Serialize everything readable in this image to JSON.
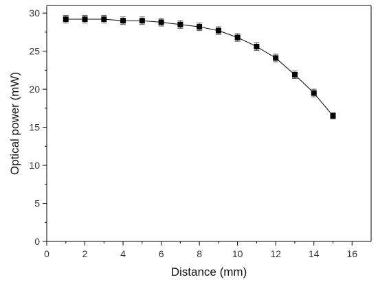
{
  "chart_data": {
    "type": "scatter",
    "title": "",
    "xlabel": "Distance (mm)",
    "ylabel": "Optical power (mW)",
    "xlim": [
      0,
      17
    ],
    "ylim": [
      0,
      31
    ],
    "x_ticks": [
      0,
      2,
      4,
      6,
      8,
      10,
      12,
      14,
      16
    ],
    "y_ticks": [
      0,
      5,
      10,
      15,
      20,
      25,
      30
    ],
    "grid": false,
    "legend": "none",
    "marker": "square",
    "line": "connected",
    "color": "#000000",
    "series": [
      {
        "x": [
          1,
          2,
          3,
          4,
          5,
          6,
          7,
          8,
          9,
          10,
          11,
          12,
          13,
          14,
          15
        ],
        "y": [
          29.2,
          29.2,
          29.2,
          29.0,
          29.0,
          28.8,
          28.5,
          28.2,
          27.7,
          26.8,
          25.6,
          24.1,
          21.9,
          19.5,
          16.5
        ],
        "error": [
          0.5,
          0.5,
          0.5,
          0.5,
          0.5,
          0.5,
          0.5,
          0.5,
          0.5,
          0.5,
          0.5,
          0.5,
          0.5,
          0.5,
          0.4
        ]
      }
    ]
  }
}
